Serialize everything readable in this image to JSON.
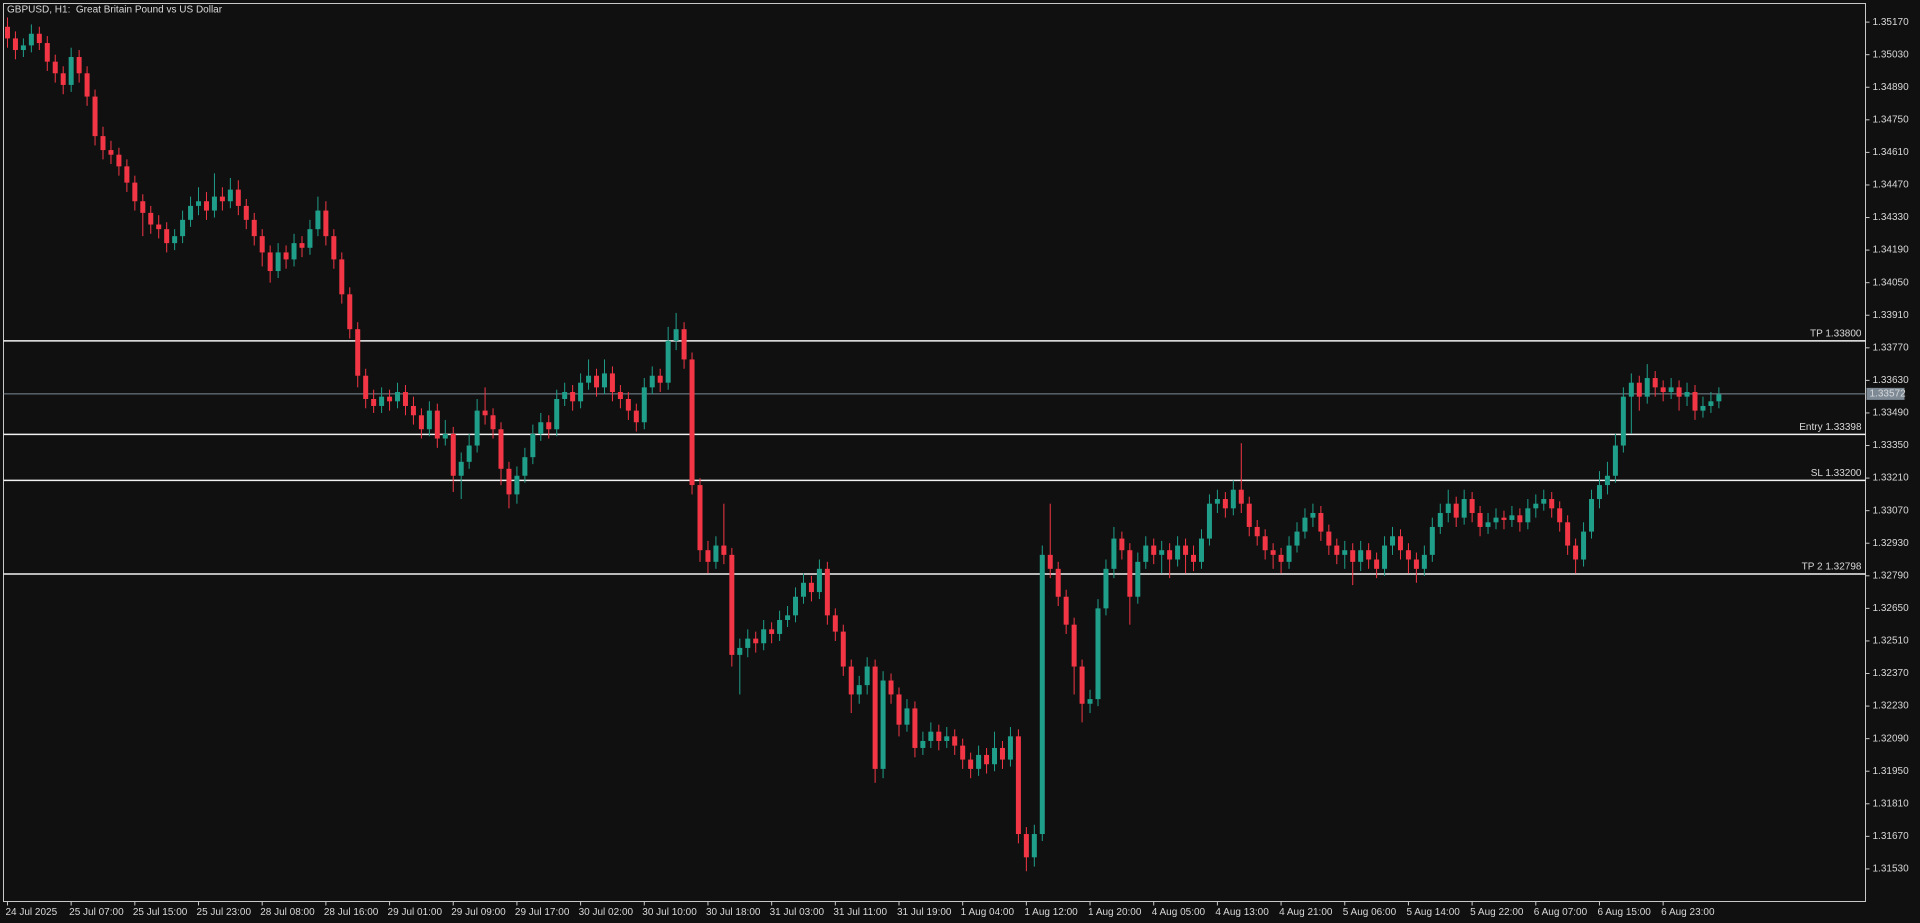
{
  "chart_data": {
    "type": "candlestick",
    "title": "GBPUSD, H1:  Great Britain Pound vs US Dollar",
    "categories": [
      "24 Jul 2025",
      null,
      null,
      null,
      null,
      null,
      null,
      null,
      "25 Jul 07:00",
      null,
      null,
      null,
      null,
      null,
      null,
      null,
      "25 Jul 15:00",
      null,
      null,
      null,
      null,
      null,
      null,
      null,
      "25 Jul 23:00",
      null,
      null,
      null,
      null,
      null,
      null,
      null,
      "28 Jul 08:00",
      null,
      null,
      null,
      null,
      null,
      null,
      null,
      "28 Jul 16:00",
      null,
      null,
      null,
      null,
      null,
      null,
      null,
      "29 Jul 01:00",
      null,
      null,
      null,
      null,
      null,
      null,
      null,
      "29 Jul 09:00",
      null,
      null,
      null,
      null,
      null,
      null,
      null,
      "29 Jul 17:00",
      null,
      null,
      null,
      null,
      null,
      null,
      null,
      "30 Jul 02:00",
      null,
      null,
      null,
      null,
      null,
      null,
      null,
      "30 Jul 10:00",
      null,
      null,
      null,
      null,
      null,
      null,
      null,
      "30 Jul 18:00",
      null,
      null,
      null,
      null,
      null,
      null,
      null,
      "31 Jul 03:00",
      null,
      null,
      null,
      null,
      null,
      null,
      null,
      "31 Jul 11:00",
      null,
      null,
      null,
      null,
      null,
      null,
      null,
      "31 Jul 19:00",
      null,
      null,
      null,
      null,
      null,
      null,
      null,
      "1 Aug 04:00",
      null,
      null,
      null,
      null,
      null,
      null,
      null,
      "1 Aug 12:00",
      null,
      null,
      null,
      null,
      null,
      null,
      null,
      "1 Aug 20:00",
      null,
      null,
      null,
      null,
      null,
      null,
      null,
      "4 Aug 05:00",
      null,
      null,
      null,
      null,
      null,
      null,
      null,
      "4 Aug 13:00",
      null,
      null,
      null,
      null,
      null,
      null,
      null,
      "4 Aug 21:00",
      null,
      null,
      null,
      null,
      null,
      null,
      null,
      "5 Aug 06:00",
      null,
      null,
      null,
      null,
      null,
      null,
      null,
      "5 Aug 14:00",
      null,
      null,
      null,
      null,
      null,
      null,
      null,
      "5 Aug 22:00",
      null,
      null,
      null,
      null,
      null,
      null,
      null,
      "6 Aug 07:00",
      null,
      null,
      null,
      null,
      null,
      null,
      null,
      "6 Aug 15:00",
      null,
      null,
      null,
      null,
      null,
      null,
      null,
      "6 Aug 23:00",
      null,
      null,
      null,
      null,
      null,
      null,
      null
    ],
    "open": [
      1.3515,
      1.351,
      1.3505,
      1.3507,
      1.3512,
      1.3508,
      1.35,
      1.3495,
      1.349,
      1.3502,
      1.3495,
      1.3485,
      1.3468,
      1.3462,
      1.346,
      1.3455,
      1.3448,
      1.344,
      1.3435,
      1.343,
      1.3428,
      1.3422,
      1.3425,
      1.3432,
      1.3438,
      1.344,
      1.3436,
      1.3442,
      1.344,
      1.3445,
      1.3438,
      1.3432,
      1.3425,
      1.3418,
      1.341,
      1.3418,
      1.3415,
      1.3422,
      1.342,
      1.3428,
      1.3436,
      1.3425,
      1.3415,
      1.34,
      1.3385,
      1.3365,
      1.3355,
      1.3352,
      1.3356,
      1.3354,
      1.3358,
      1.3352,
      1.3348,
      1.3342,
      1.335,
      1.3338,
      1.334,
      1.3322,
      1.3328,
      1.3335,
      1.335,
      1.3348,
      1.3342,
      1.3325,
      1.3314,
      1.3322,
      1.333,
      1.334,
      1.3345,
      1.3342,
      1.3355,
      1.3358,
      1.3354,
      1.3362,
      1.3365,
      1.336,
      1.3366,
      1.3358,
      1.3355,
      1.335,
      1.3345,
      1.336,
      1.3365,
      1.3362,
      1.338,
      1.3385,
      1.3372,
      1.3318,
      1.329,
      1.3285,
      1.3292,
      1.3288,
      1.3245,
      1.3248,
      1.3252,
      1.325,
      1.3256,
      1.3254,
      1.326,
      1.3262,
      1.327,
      1.3276,
      1.3272,
      1.3282,
      1.3262,
      1.3255,
      1.324,
      1.3228,
      1.3232,
      1.324,
      1.3196,
      1.3234,
      1.3228,
      1.3215,
      1.3222,
      1.3205,
      1.3208,
      1.3212,
      1.3208,
      1.321,
      1.3206,
      1.32,
      1.3196,
      1.3202,
      1.3198,
      1.3205,
      1.32,
      1.321,
      1.3168,
      1.3158,
      1.3168,
      1.3288,
      1.3282,
      1.327,
      1.3258,
      1.324,
      1.3224,
      1.3226,
      1.3265,
      1.3282,
      1.3295,
      1.329,
      1.327,
      1.3285,
      1.3292,
      1.3288,
      1.329,
      1.3286,
      1.3292,
      1.3288,
      1.3285,
      1.3295,
      1.331,
      1.3312,
      1.3308,
      1.3316,
      1.331,
      1.33,
      1.3296,
      1.329,
      1.3288,
      1.3285,
      1.3292,
      1.3298,
      1.3304,
      1.3306,
      1.3298,
      1.3292,
      1.3288,
      1.329,
      1.3285,
      1.329,
      1.3286,
      1.3282,
      1.3292,
      1.3296,
      1.329,
      1.3286,
      1.3282,
      1.3288,
      1.33,
      1.3306,
      1.331,
      1.3304,
      1.3312,
      1.3306,
      1.33,
      1.3302,
      1.3304,
      1.3303,
      1.3305,
      1.3302,
      1.3308,
      1.331,
      1.3312,
      1.3308,
      1.3302,
      1.3292,
      1.3286,
      1.3298,
      1.3312,
      1.3318,
      1.3322,
      1.3335,
      1.3356,
      1.3362,
      1.3356,
      1.3364,
      1.336,
      1.3358,
      1.336,
      1.3356,
      1.3358,
      1.335,
      1.3352,
      1.3354
    ],
    "high": [
      1.3519,
      1.3513,
      1.351,
      1.3516,
      1.3515,
      1.3511,
      1.3503,
      1.3498,
      1.3506,
      1.3505,
      1.3498,
      1.3488,
      1.3472,
      1.3466,
      1.3463,
      1.3458,
      1.3451,
      1.3443,
      1.3438,
      1.3434,
      1.3431,
      1.3428,
      1.3436,
      1.3442,
      1.3446,
      1.3444,
      1.3452,
      1.3446,
      1.345,
      1.3449,
      1.3441,
      1.3435,
      1.3428,
      1.3421,
      1.3422,
      1.3421,
      1.3426,
      1.3425,
      1.3432,
      1.3442,
      1.344,
      1.3428,
      1.3418,
      1.3403,
      1.3388,
      1.3368,
      1.3359,
      1.336,
      1.3359,
      1.3362,
      1.3361,
      1.3356,
      1.3351,
      1.3354,
      1.3353,
      1.3346,
      1.3343,
      1.3332,
      1.334,
      1.3355,
      1.336,
      1.3351,
      1.3345,
      1.3328,
      1.3326,
      1.3334,
      1.3344,
      1.3349,
      1.3348,
      1.3359,
      1.3362,
      1.3361,
      1.3366,
      1.3372,
      1.3368,
      1.3372,
      1.3369,
      1.3361,
      1.3358,
      1.3353,
      1.3364,
      1.3369,
      1.3368,
      1.3386,
      1.3392,
      1.3388,
      1.3375,
      1.3321,
      1.3294,
      1.3296,
      1.331,
      1.3291,
      1.3252,
      1.3256,
      1.3255,
      1.326,
      1.3259,
      1.3264,
      1.3266,
      1.3274,
      1.328,
      1.3279,
      1.3286,
      1.3285,
      1.3265,
      1.3258,
      1.3243,
      1.3236,
      1.3244,
      1.3243,
      1.3238,
      1.3237,
      1.3231,
      1.3226,
      1.3225,
      1.3212,
      1.3216,
      1.3215,
      1.3214,
      1.3213,
      1.3209,
      1.3203,
      1.3206,
      1.3205,
      1.3212,
      1.3208,
      1.3214,
      1.3213,
      1.3171,
      1.3172,
      1.3292,
      1.331,
      1.3285,
      1.3273,
      1.3261,
      1.3243,
      1.323,
      1.3269,
      1.3286,
      1.33,
      1.3298,
      1.3293,
      1.3289,
      1.3296,
      1.3295,
      1.3294,
      1.3293,
      1.3296,
      1.3295,
      1.3292,
      1.3299,
      1.3314,
      1.3316,
      1.3315,
      1.332,
      1.3336,
      1.3313,
      1.3303,
      1.3299,
      1.3293,
      1.3291,
      1.3296,
      1.3302,
      1.3308,
      1.331,
      1.3309,
      1.3301,
      1.3295,
      1.3294,
      1.3293,
      1.3294,
      1.3293,
      1.3289,
      1.3296,
      1.33,
      1.3299,
      1.3293,
      1.3289,
      1.3292,
      1.3304,
      1.331,
      1.3316,
      1.3313,
      1.3316,
      1.3315,
      1.3309,
      1.3306,
      1.3308,
      1.3307,
      1.3309,
      1.3308,
      1.3312,
      1.3314,
      1.3316,
      1.3315,
      1.3311,
      1.3305,
      1.3295,
      1.3302,
      1.3316,
      1.3324,
      1.3328,
      1.334,
      1.336,
      1.3366,
      1.3365,
      1.337,
      1.3367,
      1.3363,
      1.3364,
      1.3363,
      1.3362,
      1.3361,
      1.3356,
      1.3358,
      1.336
    ],
    "low": [
      1.3506,
      1.3501,
      1.3502,
      1.3504,
      1.3505,
      1.3496,
      1.3491,
      1.3486,
      1.3487,
      1.3491,
      1.3481,
      1.3464,
      1.3458,
      1.3456,
      1.3451,
      1.3444,
      1.3436,
      1.3425,
      1.3426,
      1.3424,
      1.3418,
      1.3419,
      1.3422,
      1.3429,
      1.3434,
      1.3432,
      1.3433,
      1.3436,
      1.3437,
      1.3434,
      1.3428,
      1.3421,
      1.3412,
      1.3405,
      1.3407,
      1.3411,
      1.3412,
      1.3416,
      1.3417,
      1.3425,
      1.3421,
      1.3411,
      1.3396,
      1.3381,
      1.336,
      1.3351,
      1.3349,
      1.3349,
      1.335,
      1.3351,
      1.3348,
      1.3344,
      1.3338,
      1.3339,
      1.3334,
      1.3335,
      1.3315,
      1.3312,
      1.3325,
      1.3332,
      1.3344,
      1.3338,
      1.3318,
      1.3308,
      1.331,
      1.3319,
      1.3327,
      1.3337,
      1.3338,
      1.3339,
      1.3352,
      1.335,
      1.3351,
      1.3359,
      1.3356,
      1.3357,
      1.3354,
      1.3351,
      1.3346,
      1.3341,
      1.3342,
      1.3357,
      1.3358,
      1.3359,
      1.3376,
      1.3368,
      1.3314,
      1.3285,
      1.328,
      1.3282,
      1.3284,
      1.324,
      1.3228,
      1.3244,
      1.3246,
      1.3247,
      1.325,
      1.3251,
      1.3257,
      1.3259,
      1.3267,
      1.3268,
      1.3269,
      1.3258,
      1.3251,
      1.3236,
      1.322,
      1.3224,
      1.3228,
      1.319,
      1.3192,
      1.3224,
      1.321,
      1.3212,
      1.3201,
      1.3202,
      1.3205,
      1.3204,
      1.3205,
      1.3202,
      1.3196,
      1.3192,
      1.3193,
      1.3194,
      1.3195,
      1.3196,
      1.3197,
      1.3164,
      1.3152,
      1.3154,
      1.3165,
      1.3278,
      1.3266,
      1.3254,
      1.3228,
      1.3216,
      1.322,
      1.3223,
      1.3262,
      1.3278,
      1.3286,
      1.3258,
      1.3267,
      1.3282,
      1.3284,
      1.328,
      1.3278,
      1.3283,
      1.328,
      1.3281,
      1.3282,
      1.3292,
      1.3306,
      1.3304,
      1.3305,
      1.3306,
      1.3296,
      1.3292,
      1.3286,
      1.3282,
      1.328,
      1.3282,
      1.3289,
      1.3295,
      1.33,
      1.3294,
      1.3288,
      1.3284,
      1.3282,
      1.3275,
      1.3281,
      1.3282,
      1.3278,
      1.3279,
      1.3288,
      1.3286,
      1.328,
      1.3276,
      1.3279,
      1.3285,
      1.3297,
      1.3302,
      1.33,
      1.3301,
      1.3302,
      1.3296,
      1.3297,
      1.3299,
      1.3299,
      1.33,
      1.3298,
      1.3299,
      1.3304,
      1.3307,
      1.3304,
      1.3298,
      1.3288,
      1.328,
      1.3283,
      1.3295,
      1.3308,
      1.3314,
      1.3319,
      1.3332,
      1.334,
      1.335,
      1.3353,
      1.3356,
      1.3354,
      1.3355,
      1.335,
      1.3352,
      1.3346,
      1.3347,
      1.3349,
      1.3351
    ],
    "close": [
      1.351,
      1.3505,
      1.3507,
      1.3512,
      1.3508,
      1.35,
      1.3495,
      1.349,
      1.3502,
      1.3495,
      1.3485,
      1.3468,
      1.3462,
      1.346,
      1.3455,
      1.3448,
      1.344,
      1.3435,
      1.343,
      1.3428,
      1.3422,
      1.3425,
      1.3432,
      1.3438,
      1.344,
      1.3436,
      1.3442,
      1.344,
      1.3445,
      1.3438,
      1.3432,
      1.3425,
      1.3418,
      1.341,
      1.3418,
      1.3415,
      1.3422,
      1.342,
      1.3428,
      1.3436,
      1.3425,
      1.3415,
      1.34,
      1.3385,
      1.3365,
      1.3355,
      1.3352,
      1.3356,
      1.3354,
      1.3358,
      1.3352,
      1.3348,
      1.3342,
      1.335,
      1.3338,
      1.334,
      1.3322,
      1.3328,
      1.3335,
      1.335,
      1.3348,
      1.3342,
      1.3325,
      1.3314,
      1.3322,
      1.333,
      1.334,
      1.3345,
      1.3342,
      1.3355,
      1.3358,
      1.3354,
      1.3362,
      1.3365,
      1.336,
      1.3366,
      1.3358,
      1.3355,
      1.335,
      1.3345,
      1.336,
      1.3365,
      1.3362,
      1.338,
      1.3385,
      1.3372,
      1.3318,
      1.329,
      1.3285,
      1.3292,
      1.3288,
      1.3245,
      1.3248,
      1.3252,
      1.325,
      1.3256,
      1.3254,
      1.326,
      1.3262,
      1.327,
      1.3276,
      1.3272,
      1.3282,
      1.3262,
      1.3255,
      1.324,
      1.3228,
      1.3232,
      1.324,
      1.3196,
      1.3234,
      1.3228,
      1.3215,
      1.3222,
      1.3205,
      1.3208,
      1.3212,
      1.3208,
      1.321,
      1.3206,
      1.32,
      1.3196,
      1.3202,
      1.3198,
      1.3205,
      1.32,
      1.321,
      1.3168,
      1.3158,
      1.3168,
      1.3288,
      1.3282,
      1.327,
      1.3258,
      1.324,
      1.3224,
      1.3226,
      1.3265,
      1.3282,
      1.3295,
      1.329,
      1.327,
      1.3285,
      1.3292,
      1.3288,
      1.329,
      1.3286,
      1.3292,
      1.3288,
      1.3285,
      1.3295,
      1.331,
      1.3312,
      1.3308,
      1.3316,
      1.331,
      1.33,
      1.3296,
      1.329,
      1.3288,
      1.3285,
      1.3292,
      1.3298,
      1.3304,
      1.3306,
      1.3298,
      1.3292,
      1.3288,
      1.329,
      1.3285,
      1.329,
      1.3286,
      1.3282,
      1.3292,
      1.3296,
      1.329,
      1.3286,
      1.3282,
      1.3288,
      1.33,
      1.3306,
      1.331,
      1.3304,
      1.3312,
      1.3306,
      1.33,
      1.3302,
      1.3304,
      1.3303,
      1.3305,
      1.3302,
      1.3308,
      1.331,
      1.3312,
      1.3308,
      1.3302,
      1.3292,
      1.3286,
      1.3298,
      1.3312,
      1.3318,
      1.3322,
      1.3335,
      1.3356,
      1.3362,
      1.3356,
      1.3364,
      1.336,
      1.3358,
      1.336,
      1.3356,
      1.3358,
      1.335,
      1.3352,
      1.3354,
      1.3357
    ],
    "up_color": "#1f9e89",
    "down_color": "#f23645",
    "ylim": [
      1.3139,
      1.3525
    ],
    "yticks": [
      {
        "value": 1.3517,
        "label": "1.35170"
      },
      {
        "value": 1.3503,
        "label": "1.35030"
      },
      {
        "value": 1.3489,
        "label": "1.34890"
      },
      {
        "value": 1.3475,
        "label": "1.34750"
      },
      {
        "value": 1.3461,
        "label": "1.34610"
      },
      {
        "value": 1.3447,
        "label": "1.34470"
      },
      {
        "value": 1.3433,
        "label": "1.34330"
      },
      {
        "value": 1.3419,
        "label": "1.34190"
      },
      {
        "value": 1.3405,
        "label": "1.34050"
      },
      {
        "value": 1.3391,
        "label": "1.33910"
      },
      {
        "value": 1.3377,
        "label": "1.33770"
      },
      {
        "value": 1.3363,
        "label": "1.33630"
      },
      {
        "value": 1.3349,
        "label": "1.33490"
      },
      {
        "value": 1.3335,
        "label": "1.33350"
      },
      {
        "value": 1.3321,
        "label": "1.33210"
      },
      {
        "value": 1.3307,
        "label": "1.33070"
      },
      {
        "value": 1.3293,
        "label": "1.32930"
      },
      {
        "value": 1.3279,
        "label": "1.32790"
      },
      {
        "value": 1.3265,
        "label": "1.32650"
      },
      {
        "value": 1.3251,
        "label": "1.32510"
      },
      {
        "value": 1.3237,
        "label": "1.32370"
      },
      {
        "value": 1.3223,
        "label": "1.32230"
      },
      {
        "value": 1.3209,
        "label": "1.32090"
      },
      {
        "value": 1.3195,
        "label": "1.31950"
      },
      {
        "value": 1.3181,
        "label": "1.31810"
      },
      {
        "value": 1.3167,
        "label": "1.31670"
      },
      {
        "value": 1.3153,
        "label": "1.31530"
      }
    ],
    "levels": [
      {
        "value": 1.338,
        "label": "TP 1.33800"
      },
      {
        "value": 1.33398,
        "label": "Entry 1.33398"
      },
      {
        "value": 1.332,
        "label": "SL 1.33200"
      },
      {
        "value": 1.32798,
        "label": "TP 2 1.32798"
      }
    ],
    "current_price": {
      "value": 1.33572,
      "label": "1.33572"
    },
    "grid": false
  }
}
